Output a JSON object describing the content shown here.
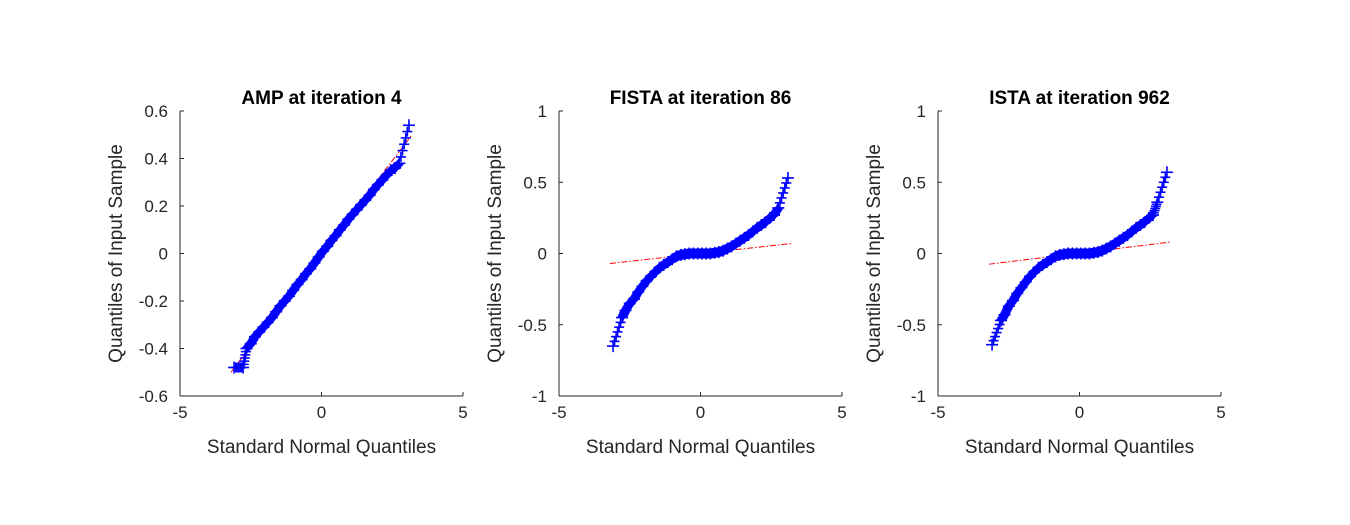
{
  "chart_data": [
    {
      "type": "scatter",
      "title": "AMP at iteration 4",
      "xlabel": "Standard Normal Quantiles",
      "ylabel": "Quantiles of Input Sample",
      "xlim": [
        -5,
        5
      ],
      "ylim": [
        -0.6,
        0.6
      ],
      "xticks": [
        -5,
        0,
        5
      ],
      "yticks": [
        -0.6,
        -0.4,
        -0.2,
        0,
        0.2,
        0.4,
        0.6
      ],
      "grid": false,
      "reference_line": {
        "x": [
          -3.2,
          3.2
        ],
        "y": [
          -0.5,
          0.5
        ],
        "color": "#ff0000",
        "style": "dash-dot"
      },
      "series": [
        {
          "marker": "+",
          "color": "#0000ff",
          "x": [
            -3.09,
            -2.77,
            -2.65,
            -2.5,
            -2.35,
            -2.2,
            -2.05,
            -1.9,
            -1.75,
            -1.6,
            -1.45,
            -1.3,
            -1.15,
            -1.0,
            -0.85,
            -0.7,
            -0.55,
            -0.4,
            -0.25,
            -0.1,
            0.05,
            0.2,
            0.35,
            0.5,
            0.65,
            0.8,
            0.95,
            1.1,
            1.25,
            1.4,
            1.55,
            1.7,
            1.85,
            2.0,
            2.15,
            2.3,
            2.45,
            2.6,
            2.75,
            3.09
          ],
          "y": [
            -0.48,
            -0.48,
            -0.4,
            -0.38,
            -0.35,
            -0.33,
            -0.31,
            -0.29,
            -0.27,
            -0.245,
            -0.22,
            -0.2,
            -0.18,
            -0.155,
            -0.13,
            -0.11,
            -0.085,
            -0.065,
            -0.04,
            -0.015,
            0.01,
            0.03,
            0.055,
            0.075,
            0.1,
            0.12,
            0.145,
            0.165,
            0.185,
            0.205,
            0.225,
            0.245,
            0.27,
            0.29,
            0.31,
            0.33,
            0.35,
            0.36,
            0.38,
            0.54
          ]
        }
      ]
    },
    {
      "type": "scatter",
      "title": "FISTA at iteration 86",
      "xlabel": "Standard Normal Quantiles",
      "ylabel": "Quantiles of Input Sample",
      "xlim": [
        -5,
        5
      ],
      "ylim": [
        -1,
        1
      ],
      "xticks": [
        -5,
        0,
        5
      ],
      "yticks": [
        -1,
        -0.5,
        0,
        0.5,
        1
      ],
      "grid": false,
      "reference_line": {
        "x": [
          -3.2,
          3.2
        ],
        "y": [
          -0.07,
          0.07
        ],
        "color": "#ff0000",
        "style": "dash-dot"
      },
      "series": [
        {
          "marker": "+",
          "color": "#0000ff",
          "x": [
            -3.09,
            -2.77,
            -2.65,
            -2.5,
            -2.35,
            -2.2,
            -2.05,
            -1.9,
            -1.75,
            -1.6,
            -1.45,
            -1.3,
            -1.15,
            -1.0,
            -0.85,
            -0.7,
            -0.55,
            -0.4,
            -0.25,
            -0.1,
            0.05,
            0.2,
            0.35,
            0.5,
            0.65,
            0.8,
            0.95,
            1.1,
            1.25,
            1.4,
            1.55,
            1.7,
            1.85,
            2.0,
            2.15,
            2.3,
            2.45,
            2.6,
            2.75,
            3.09
          ],
          "y": [
            -0.65,
            -0.45,
            -0.4,
            -0.35,
            -0.32,
            -0.27,
            -0.23,
            -0.19,
            -0.16,
            -0.13,
            -0.1,
            -0.08,
            -0.06,
            -0.04,
            -0.02,
            -0.01,
            -0.005,
            0.0,
            0.0,
            0.0,
            0.0,
            0.0,
            0.0,
            0.005,
            0.01,
            0.02,
            0.035,
            0.05,
            0.07,
            0.09,
            0.11,
            0.13,
            0.155,
            0.18,
            0.2,
            0.22,
            0.25,
            0.27,
            0.32,
            0.53
          ]
        }
      ]
    },
    {
      "type": "scatter",
      "title": "ISTA at iteration 962",
      "xlabel": "Standard Normal Quantiles",
      "ylabel": "Quantiles of Input Sample",
      "xlim": [
        -5,
        5
      ],
      "ylim": [
        -1,
        1
      ],
      "xticks": [
        -5,
        0,
        5
      ],
      "yticks": [
        -1,
        -0.5,
        0,
        0.5,
        1
      ],
      "grid": false,
      "reference_line": {
        "x": [
          -3.2,
          3.2
        ],
        "y": [
          -0.075,
          0.08
        ],
        "color": "#ff0000",
        "style": "dash-dot"
      },
      "series": [
        {
          "marker": "+",
          "color": "#0000ff",
          "x": [
            -3.09,
            -2.77,
            -2.65,
            -2.5,
            -2.35,
            -2.2,
            -2.05,
            -1.9,
            -1.75,
            -1.6,
            -1.45,
            -1.3,
            -1.15,
            -1.0,
            -0.85,
            -0.7,
            -0.55,
            -0.4,
            -0.25,
            -0.1,
            0.05,
            0.2,
            0.35,
            0.5,
            0.65,
            0.8,
            0.95,
            1.1,
            1.25,
            1.4,
            1.55,
            1.7,
            1.85,
            2.0,
            2.15,
            2.3,
            2.45,
            2.6,
            2.75,
            3.09
          ],
          "y": [
            -0.64,
            -0.47,
            -0.43,
            -0.37,
            -0.33,
            -0.28,
            -0.24,
            -0.2,
            -0.16,
            -0.13,
            -0.1,
            -0.08,
            -0.06,
            -0.04,
            -0.02,
            -0.01,
            -0.005,
            0.0,
            0.0,
            0.0,
            0.0,
            0.0,
            0.0,
            0.005,
            0.01,
            0.02,
            0.035,
            0.05,
            0.07,
            0.09,
            0.11,
            0.13,
            0.155,
            0.18,
            0.2,
            0.22,
            0.25,
            0.27,
            0.36,
            0.57
          ]
        }
      ]
    }
  ]
}
